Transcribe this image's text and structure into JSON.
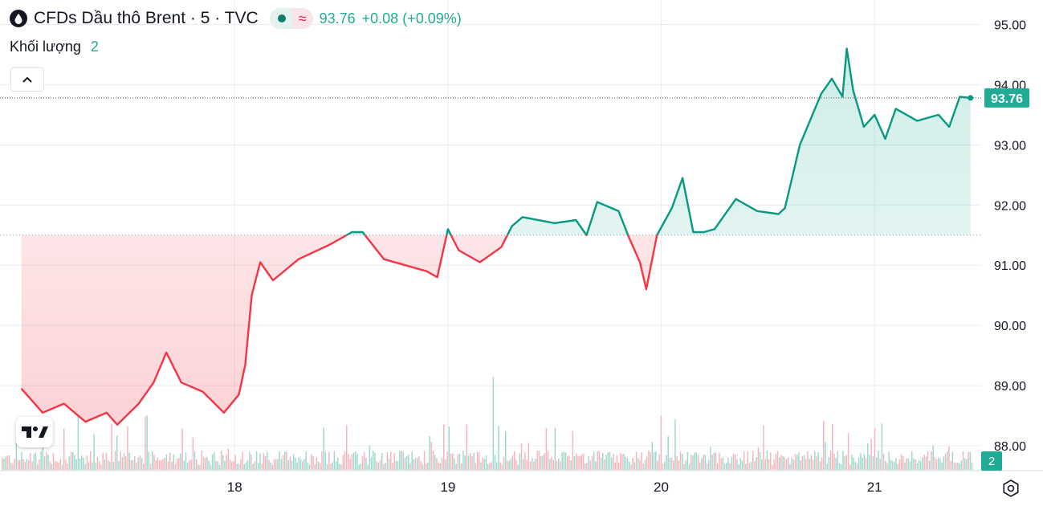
{
  "header": {
    "title": "CFDs Dầu thô Brent · 5 · TVC",
    "last": "93.76",
    "change": "+0.08 (+0.09%)"
  },
  "volume": {
    "label": "Khối lượng",
    "value": "2"
  },
  "colors": {
    "up": "#089981",
    "down": "#f23645",
    "accent": "#22ab94",
    "grid": "#e9ecf1",
    "text": "#131722"
  },
  "icons": [
    "oil-drop-icon",
    "chevron-up-icon",
    "tradingview-logo",
    "settings-icon"
  ],
  "chart_data": {
    "type": "line",
    "series": [
      {
        "values": [
          [
            17.0,
            88.95
          ],
          [
            17.1,
            88.55
          ],
          [
            17.2,
            88.7
          ],
          [
            17.3,
            88.4
          ],
          [
            17.4,
            88.55
          ],
          [
            17.45,
            88.35
          ],
          [
            17.55,
            88.7
          ],
          [
            17.62,
            89.05
          ],
          [
            17.68,
            89.55
          ],
          [
            17.75,
            89.05
          ],
          [
            17.85,
            88.9
          ],
          [
            17.95,
            88.55
          ],
          [
            18.02,
            88.85
          ],
          [
            18.05,
            89.35
          ],
          [
            18.08,
            90.5
          ],
          [
            18.12,
            91.05
          ],
          [
            18.18,
            90.75
          ],
          [
            18.3,
            91.1
          ],
          [
            18.45,
            91.35
          ],
          [
            18.55,
            91.55
          ],
          [
            18.6,
            91.55
          ],
          [
            18.7,
            91.1
          ],
          [
            18.8,
            91.0
          ],
          [
            18.9,
            90.9
          ],
          [
            18.95,
            90.8
          ],
          [
            19.0,
            91.6
          ],
          [
            19.05,
            91.25
          ],
          [
            19.15,
            91.05
          ],
          [
            19.25,
            91.3
          ],
          [
            19.3,
            91.65
          ],
          [
            19.35,
            91.8
          ],
          [
            19.5,
            91.7
          ],
          [
            19.6,
            91.75
          ],
          [
            19.65,
            91.5
          ],
          [
            19.7,
            92.05
          ],
          [
            19.8,
            91.9
          ],
          [
            19.85,
            91.45
          ],
          [
            19.9,
            91.05
          ],
          [
            19.93,
            90.6
          ],
          [
            19.98,
            91.5
          ],
          [
            20.05,
            91.95
          ],
          [
            20.1,
            92.45
          ],
          [
            20.15,
            91.55
          ],
          [
            20.2,
            91.55
          ],
          [
            20.25,
            91.6
          ],
          [
            20.35,
            92.1
          ],
          [
            20.45,
            91.9
          ],
          [
            20.55,
            91.85
          ],
          [
            20.58,
            91.95
          ],
          [
            20.65,
            93.0
          ],
          [
            20.75,
            93.85
          ],
          [
            20.8,
            94.1
          ],
          [
            20.85,
            93.8
          ],
          [
            20.87,
            94.6
          ],
          [
            20.9,
            93.9
          ],
          [
            20.95,
            93.3
          ],
          [
            21.0,
            93.5
          ],
          [
            21.05,
            93.1
          ],
          [
            21.1,
            93.6
          ],
          [
            21.2,
            93.4
          ],
          [
            21.3,
            93.5
          ],
          [
            21.35,
            93.3
          ],
          [
            21.4,
            93.8
          ],
          [
            21.45,
            93.78
          ]
        ]
      }
    ],
    "xticks": [
      "18",
      "19",
      "20",
      "21"
    ],
    "yticks": [
      "95.00",
      "94.00",
      "93.00",
      "92.00",
      "91.00",
      "90.00",
      "89.00",
      "88.00"
    ],
    "ylim": [
      87.6,
      95.3
    ],
    "xlim": [
      16.9,
      21.5
    ],
    "baseline": 91.5,
    "last_value_label": "93.76",
    "volume_label": "2"
  }
}
